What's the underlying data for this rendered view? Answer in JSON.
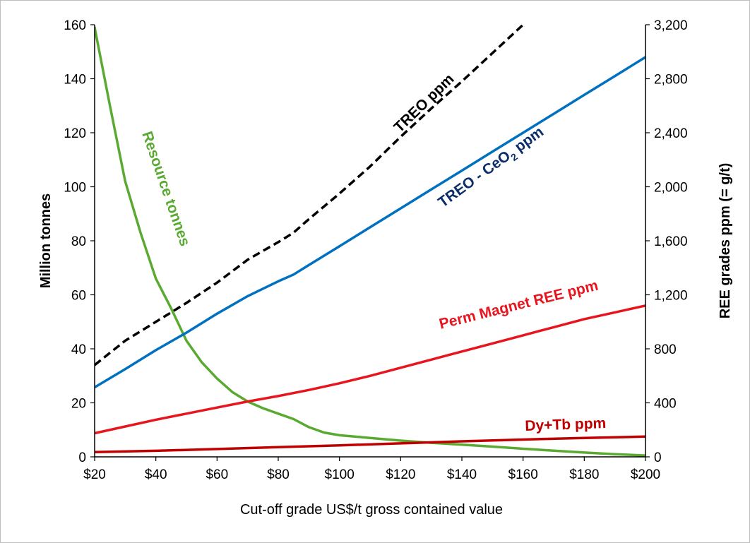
{
  "chart_data": {
    "type": "line",
    "xlabel": "Cut-off grade US$/t gross contained value",
    "ylabel": "Million tonnes",
    "y2label": "REE grades ppm (= g/t)",
    "xlim": [
      20,
      200
    ],
    "ylim": [
      0,
      160
    ],
    "y2lim": [
      0,
      3200
    ],
    "x_ticks": [
      20,
      40,
      60,
      80,
      100,
      120,
      140,
      160,
      180,
      200
    ],
    "x_tick_labels": [
      "$20",
      "$40",
      "$60",
      "$80",
      "$100",
      "$120",
      "$140",
      "$160",
      "$180",
      "$200"
    ],
    "y_ticks": [
      0,
      20,
      40,
      60,
      80,
      100,
      120,
      140,
      160
    ],
    "y_tick_labels": [
      "0",
      "20",
      "40",
      "60",
      "80",
      "100",
      "120",
      "140",
      "160"
    ],
    "y2_ticks": [
      0,
      400,
      800,
      1200,
      1600,
      2000,
      2400,
      2800,
      3200
    ],
    "y2_tick_labels": [
      "0",
      "400",
      "800",
      "1,200",
      "1,600",
      "2,000",
      "2,400",
      "2,800",
      "3,200"
    ],
    "grid": false,
    "legend": "none",
    "series": [
      {
        "name": "Resource tonnes",
        "label_text": "Resource tonnes",
        "axis": "left",
        "color": "#5aaa32",
        "dash": false,
        "x": [
          20,
          25,
          30,
          35,
          40,
          45,
          50,
          55,
          60,
          65,
          70,
          75,
          80,
          85,
          90,
          95,
          100,
          110,
          120,
          130,
          140,
          150,
          160,
          170,
          180,
          190,
          200
        ],
        "y": [
          159,
          130,
          102,
          83,
          66,
          55,
          43,
          35,
          29,
          24,
          20.5,
          18,
          16,
          14,
          11,
          9,
          8,
          7,
          6,
          5.2,
          4.5,
          3.8,
          3.0,
          2.3,
          1.6,
          1.0,
          0.5
        ]
      },
      {
        "name": "TREO ppm",
        "label_text": "TREO ppm",
        "axis": "right",
        "color": "#000000",
        "dash": true,
        "x": [
          20,
          30,
          40,
          50,
          60,
          70,
          80,
          85,
          90,
          100,
          110,
          120,
          130,
          140,
          150,
          160
        ],
        "y": [
          680,
          860,
          1000,
          1140,
          1290,
          1460,
          1590,
          1660,
          1760,
          1950,
          2150,
          2370,
          2580,
          2780,
          2990,
          3200
        ]
      },
      {
        "name": "TREO - CeO2 ppm",
        "label_text": "TREO - CeO",
        "label_sub": "2",
        "label_suffix": " ppm",
        "axis": "right",
        "color": "#0070c0",
        "dash": false,
        "x": [
          20,
          30,
          40,
          50,
          60,
          70,
          80,
          85,
          90,
          100,
          110,
          120,
          130,
          140,
          150,
          160,
          170,
          180,
          190,
          200
        ],
        "y": [
          515,
          650,
          790,
          920,
          1060,
          1190,
          1300,
          1350,
          1420,
          1560,
          1700,
          1840,
          1980,
          2120,
          2260,
          2400,
          2540,
          2680,
          2820,
          2960
        ]
      },
      {
        "name": "Perm Magnet REE ppm",
        "label_text": "Perm Magnet REE ppm",
        "axis": "right",
        "color": "#e8141e",
        "dash": false,
        "x": [
          20,
          30,
          40,
          50,
          60,
          70,
          80,
          90,
          100,
          110,
          120,
          130,
          140,
          150,
          160,
          170,
          180,
          190,
          200
        ],
        "y": [
          175,
          225,
          275,
          320,
          365,
          410,
          450,
          495,
          545,
          600,
          660,
          720,
          780,
          840,
          900,
          960,
          1020,
          1070,
          1120
        ]
      },
      {
        "name": "Dy+Tb ppm",
        "label_text": "Dy+Tb ppm",
        "axis": "right",
        "color": "#c00000",
        "dash": false,
        "x": [
          20,
          40,
          60,
          80,
          100,
          120,
          140,
          160,
          180,
          200
        ],
        "y": [
          35,
          45,
          58,
          72,
          85,
          100,
          115,
          128,
          140,
          150
        ]
      }
    ]
  }
}
